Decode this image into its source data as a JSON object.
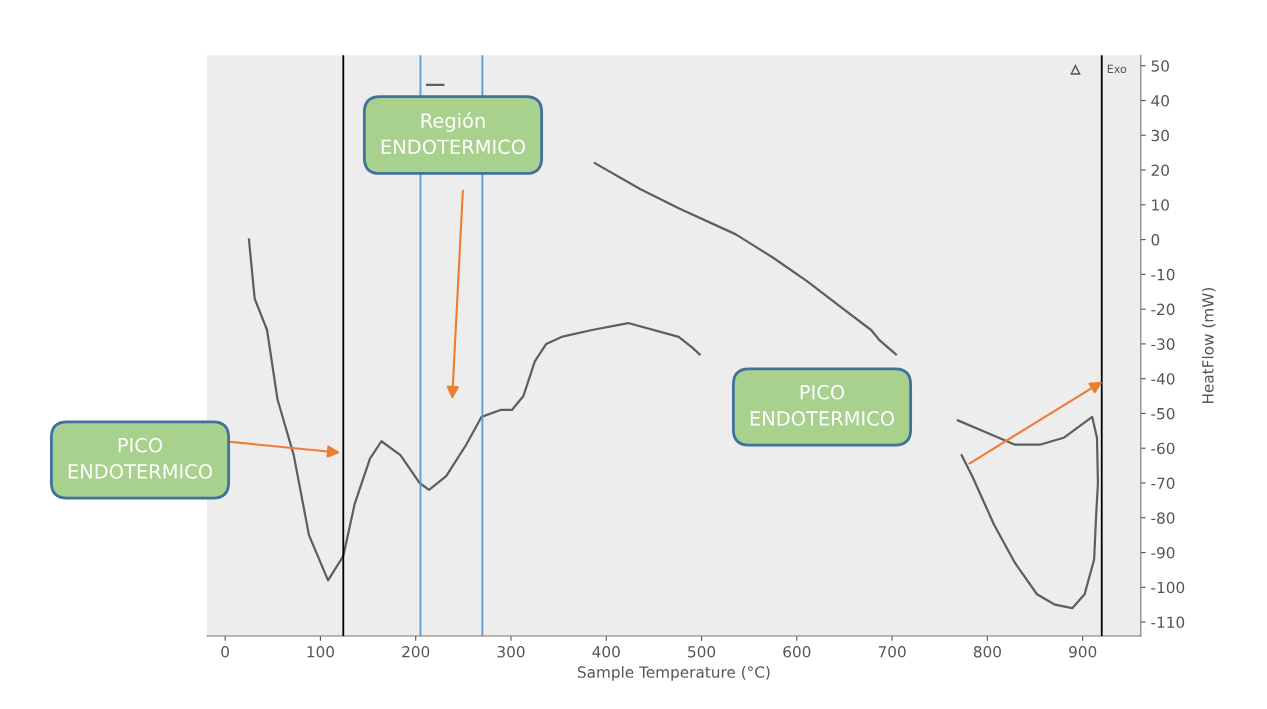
{
  "chart_data": {
    "type": "line",
    "xlabel": "Sample Temperature (°C)",
    "ylabel": "HeatFlow (mW)",
    "xlim": [
      -19,
      961
    ],
    "ylim": [
      -114,
      53
    ],
    "xticks": [
      0,
      100,
      200,
      300,
      400,
      500,
      600,
      700,
      800,
      900
    ],
    "yticks": [
      50,
      40,
      30,
      20,
      10,
      0,
      -10,
      -20,
      -30,
      -40,
      -50,
      -60,
      -70,
      -80,
      -90,
      -100,
      -110
    ],
    "grid": false,
    "legend": false,
    "marker": "none",
    "line_style": "solid",
    "series": [
      {
        "color": "#5a5f63",
        "x": [
          25,
          31,
          44,
          55,
          72,
          88,
          108,
          124,
          136,
          152,
          164,
          184,
          204,
          214,
          232,
          253,
          269,
          289,
          301,
          313,
          325,
          337,
          353,
          385,
          423,
          476,
          490,
          498,
          640,
          773,
          784,
          807,
          829,
          852,
          871,
          889,
          902,
          912,
          914,
          916,
          915,
          910,
          880,
          855,
          829,
          799,
          769,
          735,
          704,
          687,
          678,
          649,
          611,
          574,
          536,
          476,
          436,
          388,
          300,
          229,
          212
        ],
        "values": [
          0,
          -17,
          -26,
          -46,
          -62,
          -85,
          -98,
          -91,
          -76,
          -63,
          -58,
          -62,
          -70,
          -72,
          -68,
          -59,
          -51,
          -49,
          -49,
          -45,
          -35,
          -30,
          -28,
          -26,
          -24,
          -28,
          -31,
          -33,
          null,
          -62,
          -68,
          -82,
          -93,
          -102,
          -105,
          -106,
          -102,
          -92,
          -80,
          -70,
          -57,
          -51,
          -57,
          -59,
          -59,
          -55.5,
          -52,
          null,
          -33,
          -29,
          -26,
          -20,
          -12,
          -5,
          1.5,
          9,
          14.5,
          22,
          null,
          44.5,
          44.5
        ]
      }
    ],
    "ref_lines": [
      {
        "axis": "x",
        "value": 124,
        "color": "#000000",
        "line_style": "solid"
      },
      {
        "axis": "x",
        "value": 205,
        "color": "#5b9bd5",
        "line_style": "solid"
      },
      {
        "axis": "x",
        "value": 270,
        "color": "#5b9bd5",
        "line_style": "solid"
      },
      {
        "axis": "x",
        "value": 920,
        "color": "#000000",
        "line_style": "solid"
      }
    ],
    "annotations": [
      "PICO\nENDOTERMICO",
      "Región\nENDOTERMICO",
      "PICO\nENDOTERMICO",
      "Exo"
    ]
  }
}
